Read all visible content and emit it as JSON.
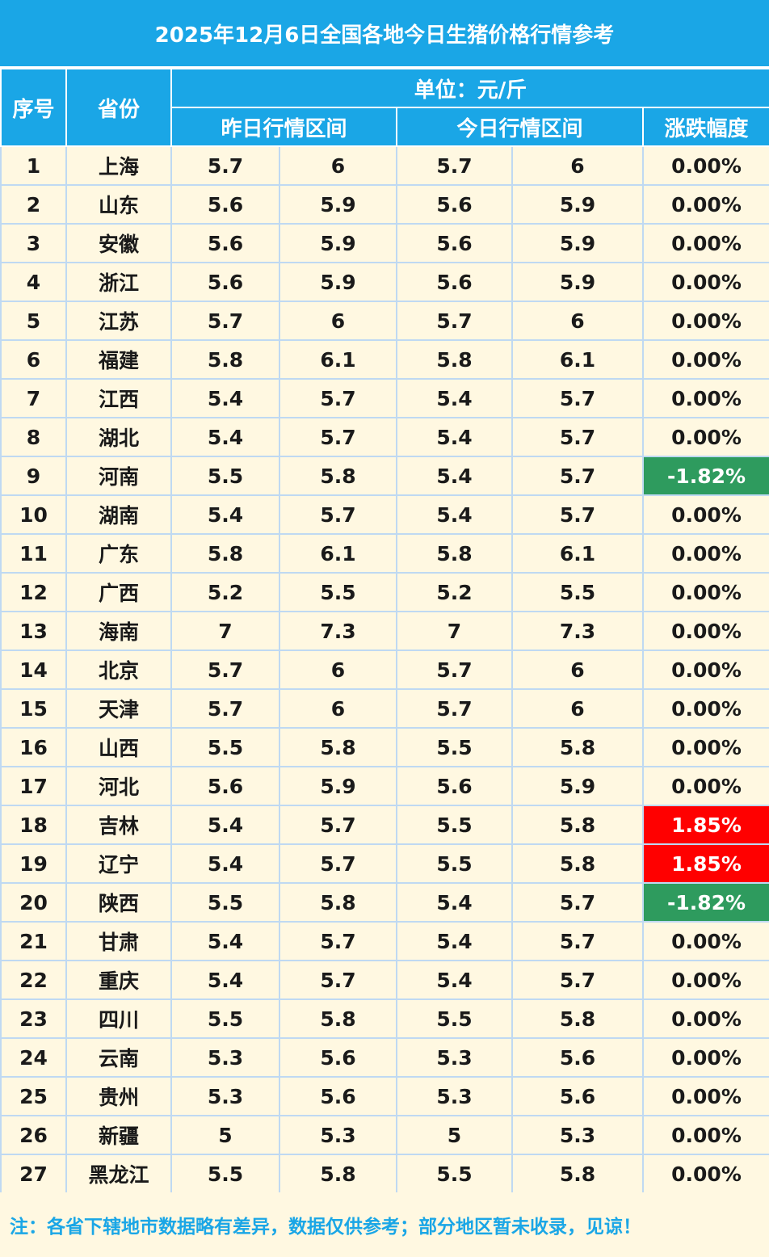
{
  "title": "2025年12月6日全国各地今日生猪价格行情参考",
  "headers": {
    "no": "序号",
    "province": "省份",
    "unit": "单位：元/斤",
    "yesterday": "昨日行情区间",
    "today": "今日行情区间",
    "change": "涨跌幅度"
  },
  "colors": {
    "header_bg": "#1AA6E6",
    "body_bg": "#FFF8E1",
    "up": "#FF0000",
    "down": "#2E9B5E"
  },
  "rows": [
    {
      "no": "1",
      "province": "上海",
      "y_low": "5.7",
      "y_high": "6",
      "t_low": "5.7",
      "t_high": "6",
      "change": "0.00%",
      "trend": "flat"
    },
    {
      "no": "2",
      "province": "山东",
      "y_low": "5.6",
      "y_high": "5.9",
      "t_low": "5.6",
      "t_high": "5.9",
      "change": "0.00%",
      "trend": "flat"
    },
    {
      "no": "3",
      "province": "安徽",
      "y_low": "5.6",
      "y_high": "5.9",
      "t_low": "5.6",
      "t_high": "5.9",
      "change": "0.00%",
      "trend": "flat"
    },
    {
      "no": "4",
      "province": "浙江",
      "y_low": "5.6",
      "y_high": "5.9",
      "t_low": "5.6",
      "t_high": "5.9",
      "change": "0.00%",
      "trend": "flat"
    },
    {
      "no": "5",
      "province": "江苏",
      "y_low": "5.7",
      "y_high": "6",
      "t_low": "5.7",
      "t_high": "6",
      "change": "0.00%",
      "trend": "flat"
    },
    {
      "no": "6",
      "province": "福建",
      "y_low": "5.8",
      "y_high": "6.1",
      "t_low": "5.8",
      "t_high": "6.1",
      "change": "0.00%",
      "trend": "flat"
    },
    {
      "no": "7",
      "province": "江西",
      "y_low": "5.4",
      "y_high": "5.7",
      "t_low": "5.4",
      "t_high": "5.7",
      "change": "0.00%",
      "trend": "flat"
    },
    {
      "no": "8",
      "province": "湖北",
      "y_low": "5.4",
      "y_high": "5.7",
      "t_low": "5.4",
      "t_high": "5.7",
      "change": "0.00%",
      "trend": "flat"
    },
    {
      "no": "9",
      "province": "河南",
      "y_low": "5.5",
      "y_high": "5.8",
      "t_low": "5.4",
      "t_high": "5.7",
      "change": "-1.82%",
      "trend": "down"
    },
    {
      "no": "10",
      "province": "湖南",
      "y_low": "5.4",
      "y_high": "5.7",
      "t_low": "5.4",
      "t_high": "5.7",
      "change": "0.00%",
      "trend": "flat"
    },
    {
      "no": "11",
      "province": "广东",
      "y_low": "5.8",
      "y_high": "6.1",
      "t_low": "5.8",
      "t_high": "6.1",
      "change": "0.00%",
      "trend": "flat"
    },
    {
      "no": "12",
      "province": "广西",
      "y_low": "5.2",
      "y_high": "5.5",
      "t_low": "5.2",
      "t_high": "5.5",
      "change": "0.00%",
      "trend": "flat"
    },
    {
      "no": "13",
      "province": "海南",
      "y_low": "7",
      "y_high": "7.3",
      "t_low": "7",
      "t_high": "7.3",
      "change": "0.00%",
      "trend": "flat"
    },
    {
      "no": "14",
      "province": "北京",
      "y_low": "5.7",
      "y_high": "6",
      "t_low": "5.7",
      "t_high": "6",
      "change": "0.00%",
      "trend": "flat"
    },
    {
      "no": "15",
      "province": "天津",
      "y_low": "5.7",
      "y_high": "6",
      "t_low": "5.7",
      "t_high": "6",
      "change": "0.00%",
      "trend": "flat"
    },
    {
      "no": "16",
      "province": "山西",
      "y_low": "5.5",
      "y_high": "5.8",
      "t_low": "5.5",
      "t_high": "5.8",
      "change": "0.00%",
      "trend": "flat"
    },
    {
      "no": "17",
      "province": "河北",
      "y_low": "5.6",
      "y_high": "5.9",
      "t_low": "5.6",
      "t_high": "5.9",
      "change": "0.00%",
      "trend": "flat"
    },
    {
      "no": "18",
      "province": "吉林",
      "y_low": "5.4",
      "y_high": "5.7",
      "t_low": "5.5",
      "t_high": "5.8",
      "change": "1.85%",
      "trend": "up"
    },
    {
      "no": "19",
      "province": "辽宁",
      "y_low": "5.4",
      "y_high": "5.7",
      "t_low": "5.5",
      "t_high": "5.8",
      "change": "1.85%",
      "trend": "up"
    },
    {
      "no": "20",
      "province": "陕西",
      "y_low": "5.5",
      "y_high": "5.8",
      "t_low": "5.4",
      "t_high": "5.7",
      "change": "-1.82%",
      "trend": "down"
    },
    {
      "no": "21",
      "province": "甘肃",
      "y_low": "5.4",
      "y_high": "5.7",
      "t_low": "5.4",
      "t_high": "5.7",
      "change": "0.00%",
      "trend": "flat"
    },
    {
      "no": "22",
      "province": "重庆",
      "y_low": "5.4",
      "y_high": "5.7",
      "t_low": "5.4",
      "t_high": "5.7",
      "change": "0.00%",
      "trend": "flat"
    },
    {
      "no": "23",
      "province": "四川",
      "y_low": "5.5",
      "y_high": "5.8",
      "t_low": "5.5",
      "t_high": "5.8",
      "change": "0.00%",
      "trend": "flat"
    },
    {
      "no": "24",
      "province": "云南",
      "y_low": "5.3",
      "y_high": "5.6",
      "t_low": "5.3",
      "t_high": "5.6",
      "change": "0.00%",
      "trend": "flat"
    },
    {
      "no": "25",
      "province": "贵州",
      "y_low": "5.3",
      "y_high": "5.6",
      "t_low": "5.3",
      "t_high": "5.6",
      "change": "0.00%",
      "trend": "flat"
    },
    {
      "no": "26",
      "province": "新疆",
      "y_low": "5",
      "y_high": "5.3",
      "t_low": "5",
      "t_high": "5.3",
      "change": "0.00%",
      "trend": "flat"
    },
    {
      "no": "27",
      "province": "黑龙江",
      "y_low": "5.5",
      "y_high": "5.8",
      "t_low": "5.5",
      "t_high": "5.8",
      "change": "0.00%",
      "trend": "flat"
    }
  ],
  "note": "注：各省下辖地市数据略有差异，数据仅供参考；部分地区暂未收录，见谅！"
}
